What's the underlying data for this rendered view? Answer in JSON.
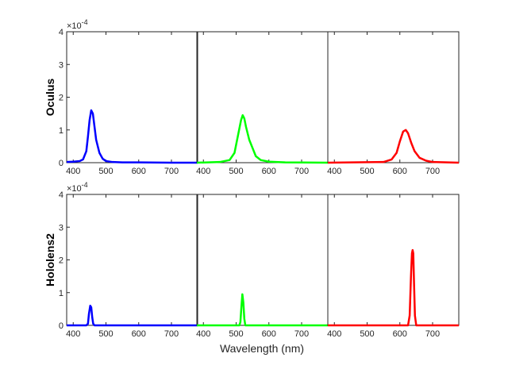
{
  "chart_data": {
    "type": "line",
    "xlabel": "Wavelength (nm)",
    "x_ticks": [
      400,
      500,
      600,
      700
    ],
    "y_ticks": [
      0,
      1,
      2,
      3,
      4
    ],
    "ylim": [
      0,
      4
    ],
    "y_multiplier": "×10",
    "y_multiplier_exp": "-4",
    "rows": [
      {
        "label": "Oculus",
        "panels": [
          {
            "color": "#0000ff",
            "xlim": [
              380,
              780
            ],
            "x": [
              380,
              400,
              420,
              430,
              440,
              445,
              450,
              455,
              460,
              465,
              470,
              480,
              490,
              500,
              520,
              550,
              600,
              700,
              780
            ],
            "y": [
              0.02,
              0.03,
              0.05,
              0.1,
              0.35,
              0.8,
              1.3,
              1.6,
              1.5,
              1.1,
              0.7,
              0.3,
              0.12,
              0.05,
              0.02,
              0.01,
              0.01,
              0.0,
              0.0
            ]
          },
          {
            "color": "#00ff00",
            "xlim": [
              380,
              780
            ],
            "x": [
              380,
              450,
              480,
              495,
              505,
              515,
              520,
              525,
              530,
              540,
              550,
              560,
              575,
              600,
              650,
              780
            ],
            "y": [
              0.0,
              0.02,
              0.08,
              0.3,
              0.8,
              1.3,
              1.45,
              1.35,
              1.1,
              0.7,
              0.45,
              0.2,
              0.08,
              0.03,
              0.01,
              0.0
            ]
          },
          {
            "color": "#ff0000",
            "xlim": [
              380,
              780
            ],
            "x": [
              380,
              550,
              575,
              590,
              600,
              610,
              618,
              625,
              635,
              645,
              660,
              680,
              700,
              780
            ],
            "y": [
              0.0,
              0.02,
              0.1,
              0.3,
              0.65,
              0.95,
              1.0,
              0.9,
              0.6,
              0.35,
              0.15,
              0.06,
              0.02,
              0.0
            ]
          }
        ]
      },
      {
        "label": "Hololens2",
        "panels": [
          {
            "color": "#0000ff",
            "xlim": [
              380,
              780
            ],
            "x": [
              380,
              440,
              445,
              448,
              452,
              455,
              458,
              461,
              465,
              480,
              780
            ],
            "y": [
              0.0,
              0.0,
              0.05,
              0.35,
              0.6,
              0.55,
              0.25,
              0.05,
              0.0,
              0.0,
              0.0
            ]
          },
          {
            "color": "#00ff00",
            "xlim": [
              380,
              780
            ],
            "x": [
              380,
              510,
              513,
              516,
              519,
              522,
              525,
              528,
              535,
              780
            ],
            "y": [
              0.0,
              0.0,
              0.1,
              0.55,
              0.95,
              0.7,
              0.2,
              0.0,
              0.0,
              0.0
            ]
          },
          {
            "color": "#ff0000",
            "xlim": [
              380,
              780
            ],
            "x": [
              380,
              625,
              630,
              634,
              637,
              639,
              641,
              643,
              646,
              650,
              780
            ],
            "y": [
              0.0,
              0.0,
              0.3,
              1.5,
              2.2,
              2.3,
              2.2,
              1.4,
              0.3,
              0.0,
              0.0
            ]
          }
        ]
      }
    ]
  }
}
